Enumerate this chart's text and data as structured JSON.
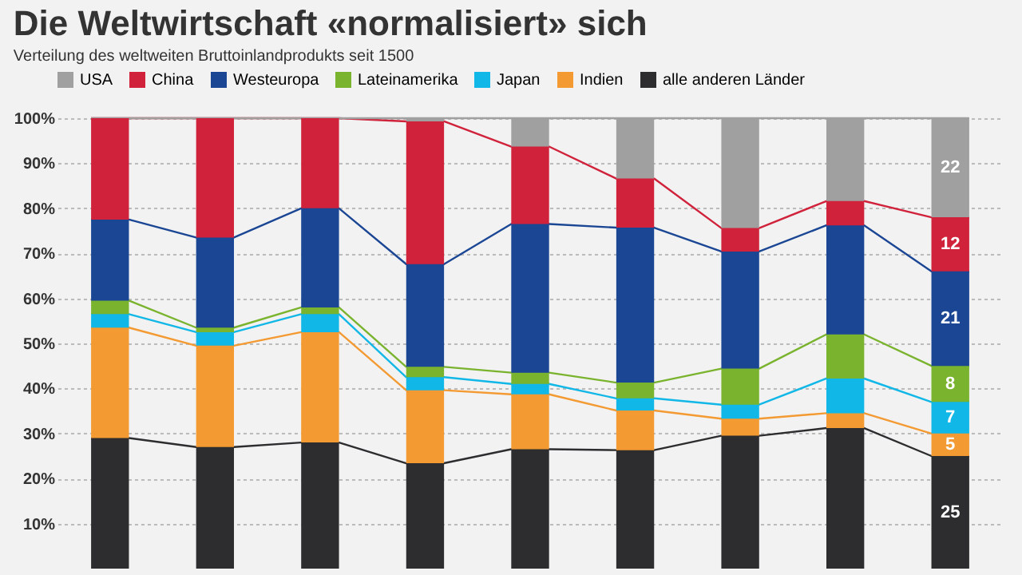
{
  "chart_data": {
    "type": "bar",
    "title": "Die Weltwirtschaft «normalisiert» sich",
    "subtitle": "Verteilung des weltweiten Bruttoinlandprodukts seit 1500",
    "categories": [
      null,
      null,
      null,
      null,
      null,
      null,
      null,
      null,
      null
    ],
    "stacked": true,
    "ylim": [
      0,
      100
    ],
    "yticks": [
      {
        "value": 10,
        "label": "10%"
      },
      {
        "value": 20,
        "label": "20%"
      },
      {
        "value": 30,
        "label": "30%"
      },
      {
        "value": 40,
        "label": "40%"
      },
      {
        "value": 50,
        "label": "50%"
      },
      {
        "value": 60,
        "label": "60%"
      },
      {
        "value": 70,
        "label": "70%"
      },
      {
        "value": 80,
        "label": "80%"
      },
      {
        "value": 90,
        "label": "90%"
      },
      {
        "value": 100,
        "label": "100%"
      }
    ],
    "grid": "y",
    "legend": "top",
    "tick_labels": "y",
    "series": [
      {
        "name": "alle anderen Länder",
        "color": "#2d2c2e",
        "values": [
          29,
          27,
          28,
          23.4,
          26.5,
          26.3,
          29.5,
          31.2,
          25
        ],
        "value_labels": [
          null,
          null,
          null,
          null,
          null,
          null,
          null,
          null,
          "25"
        ]
      },
      {
        "name": "Indien",
        "color": "#f39a32",
        "values": [
          24.5,
          22.5,
          24.5,
          16.2,
          12.2,
          8.8,
          3.8,
          3.3,
          5
        ],
        "value_labels": [
          null,
          null,
          null,
          null,
          null,
          null,
          null,
          null,
          "5"
        ]
      },
      {
        "name": "Japan",
        "color": "#11b7e6",
        "values": [
          3,
          3,
          4,
          2.9,
          2.3,
          2.7,
          3.1,
          7.7,
          7
        ],
        "value_labels": [
          null,
          null,
          null,
          null,
          null,
          null,
          null,
          null,
          "7"
        ]
      },
      {
        "name": "Lateinamerika",
        "color": "#7ab32e",
        "values": [
          3,
          1,
          1.5,
          2.3,
          2.5,
          3.5,
          8,
          9.8,
          8
        ],
        "value_labels": [
          null,
          null,
          null,
          null,
          null,
          null,
          null,
          null,
          "8"
        ]
      },
      {
        "name": "Westeuropa",
        "color": "#1a4694",
        "values": [
          18,
          20,
          22,
          22.8,
          33,
          34.4,
          26,
          24.2,
          21
        ],
        "value_labels": [
          null,
          null,
          null,
          null,
          null,
          null,
          null,
          null,
          "21"
        ]
      },
      {
        "name": "China",
        "color": "#d0223a",
        "values": [
          22.5,
          26.5,
          20,
          31.7,
          17.2,
          10.9,
          5.2,
          5.4,
          12
        ],
        "value_labels": [
          null,
          null,
          null,
          null,
          null,
          null,
          null,
          null,
          "12"
        ]
      },
      {
        "name": "USA",
        "color": "#a0a0a0",
        "values": [
          0,
          0,
          0,
          0.7,
          6.3,
          13.4,
          24.4,
          18.4,
          22
        ],
        "value_labels": [
          null,
          null,
          null,
          null,
          null,
          null,
          null,
          null,
          "22"
        ]
      }
    ]
  }
}
